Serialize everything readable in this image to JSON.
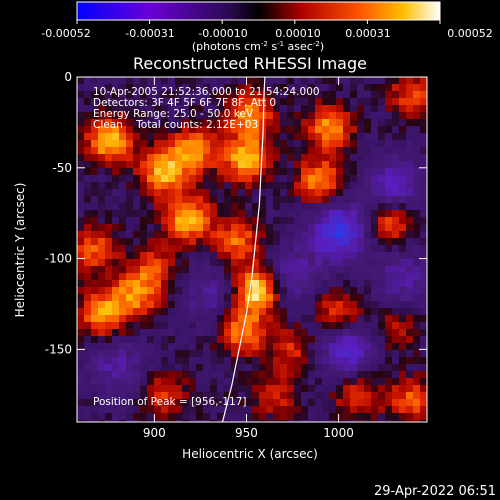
{
  "colorbar": {
    "ticks": [
      "-0.00052",
      "-0.00031",
      "-0.00010",
      "0.00010",
      "0.00031",
      "0.00052"
    ],
    "unit_label": "(photons cm",
    "unit_exp1": "-2",
    "unit_mid": " s",
    "unit_exp2": "-1",
    "unit_end": " asec",
    "unit_exp3": "-2",
    "unit_close": ")"
  },
  "chart_data": {
    "type": "heatmap",
    "title": "Reconstructed RHESSI Image",
    "xlabel": "Heliocentric X (arcsec)",
    "ylabel": "Heliocentric Y (arcsec)",
    "xlim": [
      858,
      1048
    ],
    "ylim": [
      -190,
      0
    ],
    "xticks": [
      900,
      950,
      1000
    ],
    "yticks": [
      0,
      -50,
      -100,
      -150
    ],
    "value_range": [
      -0.00052,
      0.00052
    ],
    "info_lines": [
      "10-Apr-2005 21:52:36.000 to 21:54:24.000",
      "Detectors: 3F 4F 5F 6F 7F 8F, Att 0",
      "Energy Range: 25.0 - 50.0 keV",
      "Clean    Total counts: 2.12E+03"
    ],
    "peak_label": "Position of Peak = [956,-117]",
    "peak": [
      956,
      -117
    ],
    "limb_curve": [
      [
        937,
        -190
      ],
      [
        942,
        -170
      ],
      [
        946,
        -150
      ],
      [
        950,
        -130
      ],
      [
        953,
        -110
      ],
      [
        955,
        -90
      ],
      [
        957,
        -70
      ],
      [
        958,
        -50
      ],
      [
        959,
        -30
      ],
      [
        959.5,
        -10
      ],
      [
        960,
        0
      ]
    ],
    "bright_sources": [
      {
        "x": 876,
        "y": -35,
        "level": 0.85
      },
      {
        "x": 905,
        "y": -52,
        "level": 0.8
      },
      {
        "x": 922,
        "y": -40,
        "level": 0.7
      },
      {
        "x": 918,
        "y": -78,
        "level": 0.85
      },
      {
        "x": 950,
        "y": -45,
        "level": 0.85
      },
      {
        "x": 952,
        "y": -20,
        "level": 0.7
      },
      {
        "x": 945,
        "y": -90,
        "level": 0.6
      },
      {
        "x": 956,
        "y": -117,
        "level": 1.0
      },
      {
        "x": 948,
        "y": -140,
        "level": 0.7
      },
      {
        "x": 995,
        "y": -28,
        "level": 0.7
      },
      {
        "x": 990,
        "y": -58,
        "level": 0.7
      },
      {
        "x": 1028,
        "y": -80,
        "level": 0.6
      },
      {
        "x": 1040,
        "y": -10,
        "level": 0.5
      },
      {
        "x": 872,
        "y": -130,
        "level": 0.75
      },
      {
        "x": 890,
        "y": -120,
        "level": 0.65
      },
      {
        "x": 868,
        "y": -95,
        "level": 0.55
      },
      {
        "x": 900,
        "y": -105,
        "level": 0.45
      },
      {
        "x": 1000,
        "y": -130,
        "level": 0.55
      },
      {
        "x": 1010,
        "y": -175,
        "level": 0.5
      },
      {
        "x": 1040,
        "y": -178,
        "level": 0.55
      },
      {
        "x": 905,
        "y": -175,
        "level": 0.45
      },
      {
        "x": 975,
        "y": -150,
        "level": 0.4
      },
      {
        "x": 965,
        "y": -175,
        "level": 0.4
      },
      {
        "x": 1030,
        "y": -140,
        "level": 0.35
      }
    ],
    "dark_sources": [
      {
        "x": 1000,
        "y": -85,
        "level": 0.9
      },
      {
        "x": 1030,
        "y": -60,
        "level": 0.6
      },
      {
        "x": 1005,
        "y": -150,
        "level": 0.7
      },
      {
        "x": 975,
        "y": -110,
        "level": 0.5
      },
      {
        "x": 1035,
        "y": -110,
        "level": 0.45
      },
      {
        "x": 880,
        "y": -160,
        "level": 0.45
      },
      {
        "x": 930,
        "y": -120,
        "level": 0.4
      }
    ]
  },
  "footer": {
    "timestamp": "29-Apr-2022 06:51"
  }
}
